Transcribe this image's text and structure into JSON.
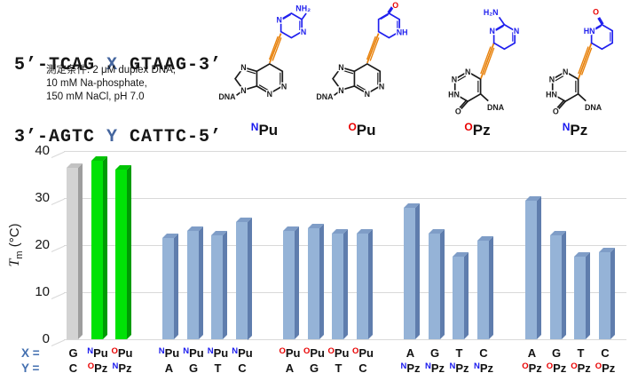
{
  "colors": {
    "sup": {
      "N": "#1A1AEE",
      "O": "#E80000"
    },
    "seq_variable": "#44659E",
    "axis_label_blue": "#4470B0",
    "ring_blue": "#2020EE",
    "alkyne_orange": "#E8820C",
    "grid": "#D9D9D9",
    "bars": {
      "gray": {
        "front": "#D3D3D3",
        "side": "#9E9E9E",
        "top": "#C2C2C2"
      },
      "green": {
        "front": "#00E206",
        "side": "#009B04",
        "top": "#00C405"
      },
      "blue": {
        "front": "#95B3D7",
        "side": "#5F7DAD",
        "top": "#7F9DC7"
      }
    }
  },
  "header": {
    "sequence_top": {
      "prefix": "5’-TCAG ",
      "variable": "X",
      "suffix": " GTAAG-3’"
    },
    "sequence_bottom": {
      "prefix": "3’-AGTC ",
      "variable": "Y",
      "suffix": " CATTC-5’"
    },
    "conditions": [
      "測定条件: 2 μM duplex DNA,",
      "10 mM Na-phosphate,",
      "150 mM NaCl, pH 7.0"
    ]
  },
  "structures": [
    {
      "label_sup": "N",
      "label_base": "Pu",
      "atoms": {
        "n7": "N",
        "n9": "N",
        "n1": "N",
        "n3": "N",
        "dna": "DNA",
        "ring_n_left": "N",
        "ring_n_right": "N",
        "amino": "NH₂"
      }
    },
    {
      "label_sup": "O",
      "label_base": "Pu",
      "atoms": {
        "n7": "N",
        "n9": "N",
        "n1": "N",
        "n3": "N",
        "dna": "DNA",
        "nh": "NH",
        "oxo": "O"
      }
    },
    {
      "label_sup": "O",
      "label_base": "Pz",
      "atoms": {
        "n1": "N",
        "n2": "N",
        "hn": "HN",
        "oxo": "O",
        "dna": "DNA",
        "amino": "H₂N",
        "ring_n_left": "N",
        "ring_n_right": "N"
      }
    },
    {
      "label_sup": "N",
      "label_base": "Pz",
      "atoms": {
        "n1": "N",
        "n2": "N",
        "hn": "HN",
        "oxo": "O",
        "dna": "DNA",
        "top_hn": "HN",
        "top_oxo": "O"
      }
    }
  ],
  "chart_data": {
    "type": "bar",
    "title": "",
    "ylabel": {
      "t": "T",
      "sub": "m",
      "units": " (°C)"
    },
    "ylim": [
      0,
      40
    ],
    "yticks": [
      0,
      10,
      20,
      30,
      40
    ],
    "grid": true,
    "x_row_label": "X =",
    "y_row_label": "Y =",
    "groups": [
      {
        "bars": [
          {
            "x": {
              "sup": "",
              "base": "G"
            },
            "y": {
              "sup": "",
              "base": "C"
            },
            "value": 36.5,
            "color": "gray"
          },
          {
            "x": {
              "sup": "N",
              "base": "Pu"
            },
            "y": {
              "sup": "O",
              "base": "Pz"
            },
            "value": 38,
            "color": "green"
          },
          {
            "x": {
              "sup": "O",
              "base": "Pu"
            },
            "y": {
              "sup": "N",
              "base": "Pz"
            },
            "value": 36,
            "color": "green"
          }
        ]
      },
      {
        "bars": [
          {
            "x": {
              "sup": "N",
              "base": "Pu"
            },
            "y": {
              "sup": "",
              "base": "A"
            },
            "value": 21.5,
            "color": "blue"
          },
          {
            "x": {
              "sup": "N",
              "base": "Pu"
            },
            "y": {
              "sup": "",
              "base": "G"
            },
            "value": 23,
            "color": "blue"
          },
          {
            "x": {
              "sup": "N",
              "base": "Pu"
            },
            "y": {
              "sup": "",
              "base": "T"
            },
            "value": 22,
            "color": "blue"
          },
          {
            "x": {
              "sup": "N",
              "base": "Pu"
            },
            "y": {
              "sup": "",
              "base": "C"
            },
            "value": 25,
            "color": "blue"
          }
        ]
      },
      {
        "bars": [
          {
            "x": {
              "sup": "O",
              "base": "Pu"
            },
            "y": {
              "sup": "",
              "base": "A"
            },
            "value": 23,
            "color": "blue"
          },
          {
            "x": {
              "sup": "O",
              "base": "Pu"
            },
            "y": {
              "sup": "",
              "base": "G"
            },
            "value": 23.5,
            "color": "blue"
          },
          {
            "x": {
              "sup": "O",
              "base": "Pu"
            },
            "y": {
              "sup": "",
              "base": "T"
            },
            "value": 22.5,
            "color": "blue"
          },
          {
            "x": {
              "sup": "O",
              "base": "Pu"
            },
            "y": {
              "sup": "",
              "base": "C"
            },
            "value": 22.5,
            "color": "blue"
          }
        ]
      },
      {
        "bars": [
          {
            "x": {
              "sup": "",
              "base": "A"
            },
            "y": {
              "sup": "N",
              "base": "Pz"
            },
            "value": 28,
            "color": "blue"
          },
          {
            "x": {
              "sup": "",
              "base": "G"
            },
            "y": {
              "sup": "N",
              "base": "Pz"
            },
            "value": 22.5,
            "color": "blue"
          },
          {
            "x": {
              "sup": "",
              "base": "T"
            },
            "y": {
              "sup": "N",
              "base": "Pz"
            },
            "value": 17.5,
            "color": "blue"
          },
          {
            "x": {
              "sup": "",
              "base": "C"
            },
            "y": {
              "sup": "N",
              "base": "Pz"
            },
            "value": 21,
            "color": "blue"
          }
        ]
      },
      {
        "bars": [
          {
            "x": {
              "sup": "",
              "base": "A"
            },
            "y": {
              "sup": "O",
              "base": "Pz"
            },
            "value": 29.5,
            "color": "blue"
          },
          {
            "x": {
              "sup": "",
              "base": "G"
            },
            "y": {
              "sup": "O",
              "base": "Pz"
            },
            "value": 22,
            "color": "blue"
          },
          {
            "x": {
              "sup": "",
              "base": "T"
            },
            "y": {
              "sup": "O",
              "base": "Pz"
            },
            "value": 17.5,
            "color": "blue"
          },
          {
            "x": {
              "sup": "",
              "base": "C"
            },
            "y": {
              "sup": "O",
              "base": "Pz"
            },
            "value": 18.5,
            "color": "blue"
          }
        ]
      }
    ]
  }
}
